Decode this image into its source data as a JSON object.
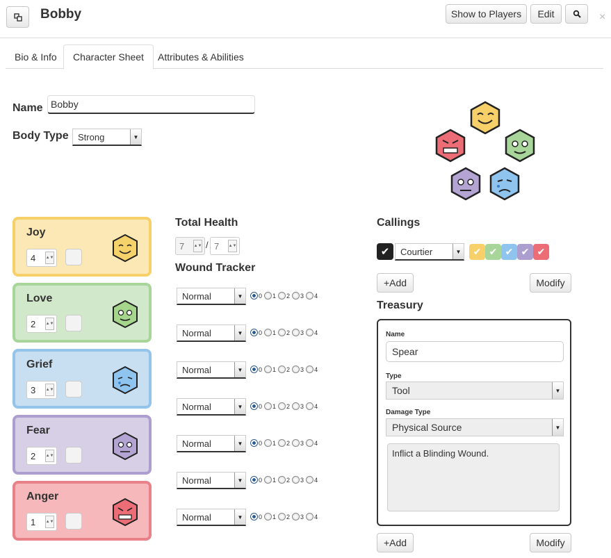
{
  "header": {
    "title": "Bobby",
    "show_to_players": "Show to Players",
    "edit": "Edit",
    "close": "×"
  },
  "tabs": [
    {
      "label": "Bio & Info"
    },
    {
      "label": "Character Sheet"
    },
    {
      "label": "Attributes & Abilities"
    }
  ],
  "character": {
    "name_label": "Name",
    "name_value": "Bobby",
    "body_type_label": "Body Type",
    "body_type_value": "Strong"
  },
  "emotions": [
    {
      "name": "Joy",
      "value": "4",
      "color": "#f6d36a",
      "bg": "#fce8b4",
      "border": "#f7d06a"
    },
    {
      "name": "Love",
      "value": "2",
      "color": "#a6d58c",
      "bg": "#d2e8cb",
      "border": "#a8d69a"
    },
    {
      "name": "Grief",
      "value": "3",
      "color": "#8fc4ef",
      "bg": "#c8def1",
      "border": "#95c4ea"
    },
    {
      "name": "Fear",
      "value": "2",
      "color": "#b4a4d4",
      "bg": "#d6cfe6",
      "border": "#ac9fcf"
    },
    {
      "name": "Anger",
      "value": "1",
      "color": "#ec6d76",
      "bg": "#f6b8bb",
      "border": "#e88188"
    }
  ],
  "health": {
    "total_label": "Total Health",
    "current": "7",
    "separator": "/",
    "max": "7",
    "wound_label": "Wound Tracker"
  },
  "wounds": [
    {
      "state": "Normal",
      "selected": 0
    },
    {
      "state": "Normal",
      "selected": 0
    },
    {
      "state": "Normal",
      "selected": 0
    },
    {
      "state": "Normal",
      "selected": 0
    },
    {
      "state": "Normal",
      "selected": 0
    },
    {
      "state": "Normal",
      "selected": 0
    },
    {
      "state": "Normal",
      "selected": 0
    }
  ],
  "radio_labels": [
    "0",
    "1",
    "2",
    "3",
    "4"
  ],
  "callings": {
    "label": "Callings",
    "value": "Courtier",
    "chips": [
      "#f7d06a",
      "#a8d69a",
      "#8fc4ef",
      "#ac9fcf",
      "#ec6d76"
    ],
    "add": "+Add",
    "modify": "Modify"
  },
  "treasury": {
    "label": "Treasury",
    "name_label": "Name",
    "name_value": "Spear",
    "type_label": "Type",
    "type_value": "Tool",
    "damage_label": "Damage Type",
    "damage_value": "Physical Source",
    "description": "Inflict a Blinding Wound.",
    "add": "+Add",
    "modify": "Modify"
  }
}
